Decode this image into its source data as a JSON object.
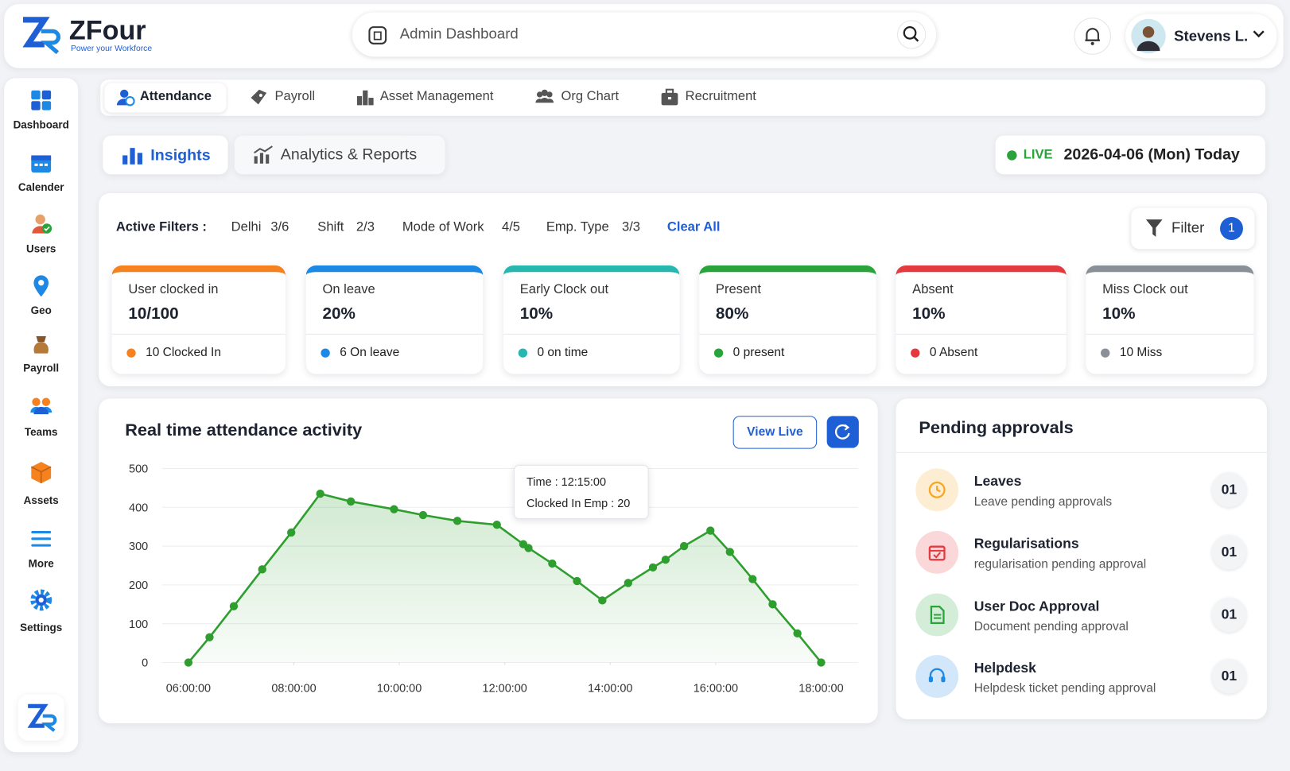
{
  "brand": {
    "name": "ZFour",
    "tagline": "Power your Workforce"
  },
  "search": "Admin Dashboard",
  "user": "Stevens L.",
  "sidebar": [
    "Dashboard",
    "Calender",
    "Users",
    "Geo",
    "Payroll",
    "Teams",
    "Assets",
    "More",
    "Settings"
  ],
  "tabs": [
    "Attendance",
    "Payroll",
    "Asset Management",
    "Org Chart",
    "Recruitment"
  ],
  "subtabs": [
    "Insights",
    "Analytics & Reports"
  ],
  "live": "LIVE",
  "date": "2026-04-06 (Mon) Today",
  "filters": {
    "label": "Active Filters :",
    "items": [
      {
        "name": "Delhi",
        "value": "3/6"
      },
      {
        "name": "Shift",
        "value": "2/3"
      },
      {
        "name": "Mode of Work",
        "value": "4/5"
      },
      {
        "name": "Emp. Type",
        "value": "3/3"
      }
    ],
    "clear": "Clear All",
    "button": "Filter",
    "count": 1
  },
  "cards": [
    {
      "title": "User clocked in",
      "value": "10/100",
      "note": "10 Clocked In",
      "color": "#f5821f"
    },
    {
      "title": "On leave",
      "value": "20%",
      "note": "6 On leave",
      "color": "#1e88e5"
    },
    {
      "title": "Early Clock out",
      "value": "10%",
      "note": "0 on time",
      "color": "#26b8b0"
    },
    {
      "title": "Present",
      "value": "80%",
      "note": "0 present",
      "color": "#2aa33a"
    },
    {
      "title": "Absent",
      "value": "10%",
      "note": "0 Absent",
      "color": "#e53940"
    },
    {
      "title": "Miss Clock out",
      "value": "10%",
      "note": "10 Miss",
      "color": "#8a8f98"
    }
  ],
  "activity_button": "View Live",
  "chart_data": {
    "type": "line",
    "title": "Real time attendance activity",
    "x": [
      6.0,
      6.4,
      6.86,
      7.4,
      7.95,
      8.5,
      9.08,
      9.9,
      10.45,
      11.1,
      11.85,
      12.35,
      12.45,
      12.9,
      13.37,
      13.85,
      14.34,
      14.81,
      15.05,
      15.4,
      15.9,
      16.27,
      16.7,
      17.08,
      17.55,
      18.0
    ],
    "values": [
      0,
      65,
      145,
      240,
      335,
      435,
      415,
      395,
      380,
      365,
      355,
      305,
      295,
      255,
      210,
      160,
      205,
      245,
      265,
      300,
      340,
      285,
      215,
      150,
      75,
      0
    ],
    "color": "#2e9e2e",
    "xlim": [
      5.5,
      18.7
    ],
    "ylim": [
      0,
      500
    ],
    "xticks": [
      {
        "value": 6,
        "label": "06:00:00"
      },
      {
        "value": 8,
        "label": "08:00:00"
      },
      {
        "value": 10,
        "label": "10:00:00"
      },
      {
        "value": 12,
        "label": "12:00:00"
      },
      {
        "value": 14,
        "label": "14:00:00"
      },
      {
        "value": 16,
        "label": "16:00:00"
      },
      {
        "value": 18,
        "label": "18:00:00"
      }
    ],
    "yticks": [
      0,
      100,
      200,
      300,
      400,
      500
    ],
    "grid": true,
    "tooltip": {
      "time": "Time : 12:15:00",
      "count": "Clocked In Emp : 20"
    }
  },
  "approvals": {
    "title": "Pending approvals",
    "items": [
      {
        "name": "Leaves",
        "desc": "Leave pending approvals",
        "count": "01",
        "color": "#f5a623"
      },
      {
        "name": "Regularisations",
        "desc": "regularisation pending approval",
        "count": "01",
        "color": "#e53940"
      },
      {
        "name": "User Doc Approval",
        "desc": "Document pending approval",
        "count": "01",
        "color": "#2aa33a"
      },
      {
        "name": "Helpdesk",
        "desc": "Helpdesk ticket pending approval",
        "count": "01",
        "color": "#1e88e5"
      }
    ]
  }
}
